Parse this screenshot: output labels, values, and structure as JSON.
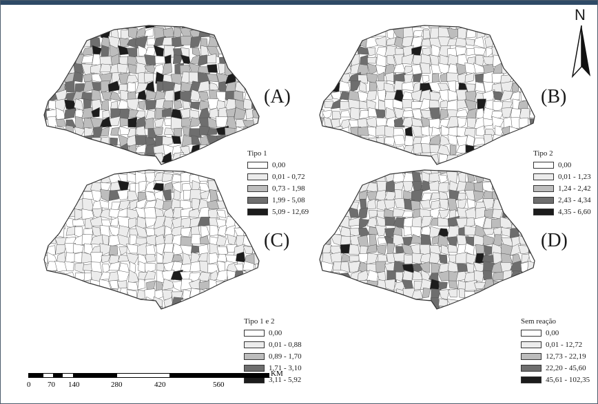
{
  "north_label": "N",
  "panels": [
    {
      "label": "(A)",
      "legend": {
        "title": "Tipo 1",
        "classes": [
          {
            "range": "0,00",
            "color": "#ffffff"
          },
          {
            "range": "0,01 - 0,72",
            "color": "#ececec"
          },
          {
            "range": "0,73 - 1,98",
            "color": "#bdbdbd"
          },
          {
            "range": "1,99 - 5,08",
            "color": "#6e6e6e"
          },
          {
            "range": "5,09 - 12,69",
            "color": "#1c1c1c"
          }
        ]
      }
    },
    {
      "label": "(B)",
      "legend": {
        "title": "Tipo 2",
        "classes": [
          {
            "range": "0,00",
            "color": "#ffffff"
          },
          {
            "range": "0,01 - 1,23",
            "color": "#ececec"
          },
          {
            "range": "1,24 - 2,42",
            "color": "#bdbdbd"
          },
          {
            "range": "2,43 - 4,34",
            "color": "#6e6e6e"
          },
          {
            "range": "4,35 - 6,60",
            "color": "#1c1c1c"
          }
        ]
      }
    },
    {
      "label": "(C)",
      "legend": {
        "title": "Tipo 1 e 2",
        "classes": [
          {
            "range": "0,00",
            "color": "#ffffff"
          },
          {
            "range": "0,01 - 0,88",
            "color": "#ececec"
          },
          {
            "range": "0,89 - 1,70",
            "color": "#bdbdbd"
          },
          {
            "range": "1,71 - 3,10",
            "color": "#6e6e6e"
          },
          {
            "range": "3,11 - 5,92",
            "color": "#1c1c1c"
          }
        ]
      }
    },
    {
      "label": "(D)",
      "legend": {
        "title": "Sem reação",
        "classes": [
          {
            "range": "0,00",
            "color": "#ffffff"
          },
          {
            "range": "0,01 - 12,72",
            "color": "#ececec"
          },
          {
            "range": "12,73 - 22,19",
            "color": "#bdbdbd"
          },
          {
            "range": "22,20 - 45,60",
            "color": "#6e6e6e"
          },
          {
            "range": "45,61 - 102,35",
            "color": "#1c1c1c"
          }
        ]
      }
    }
  ],
  "scale_bar": {
    "unit": "KM",
    "ticks": [
      "0",
      "70",
      "140",
      "280",
      "420",
      "560"
    ]
  }
}
